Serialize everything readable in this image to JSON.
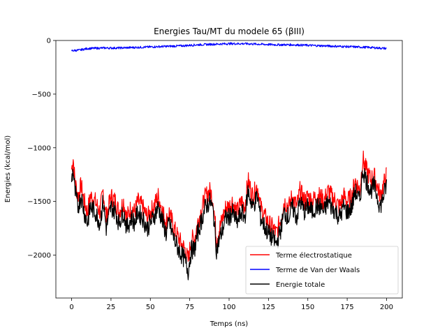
{
  "chart_data": {
    "type": "line",
    "title": "Energies Tau/MT du modele 65 (βIII)",
    "xlabel": "Temps (ns)",
    "ylabel": "Energies (kcal/mol)",
    "xlim": [
      -10,
      210
    ],
    "ylim": [
      -2400,
      0
    ],
    "xticks": [
      0,
      25,
      50,
      75,
      100,
      125,
      150,
      175,
      200
    ],
    "yticks": [
      0,
      -500,
      -1000,
      -1500,
      -2000
    ],
    "ytick_labels": [
      "0",
      "−500",
      "−1000",
      "−1500",
      "−2000"
    ],
    "legend_position": "lower-right",
    "series": [
      {
        "name": "Terme électrostatique",
        "color": "#ff0000",
        "x": [
          0,
          1,
          2,
          4,
          6,
          8,
          10,
          12,
          15,
          18,
          20,
          22,
          25,
          28,
          30,
          33,
          35,
          38,
          40,
          42,
          45,
          48,
          50,
          52,
          55,
          58,
          60,
          62,
          65,
          68,
          70,
          72,
          74,
          76,
          78,
          80,
          82,
          85,
          88,
          90,
          92,
          94,
          96,
          98,
          100,
          102,
          105,
          108,
          110,
          112,
          115,
          118,
          120,
          123,
          125,
          128,
          130,
          133,
          135,
          138,
          140,
          143,
          145,
          148,
          150,
          153,
          155,
          158,
          160,
          163,
          165,
          168,
          170,
          173,
          175,
          178,
          180,
          183,
          185,
          187,
          190,
          192,
          194,
          196,
          198,
          200
        ],
        "y": [
          -1200,
          -1100,
          -1300,
          -1450,
          -1350,
          -1500,
          -1600,
          -1450,
          -1500,
          -1600,
          -1400,
          -1650,
          -1450,
          -1500,
          -1600,
          -1500,
          -1650,
          -1550,
          -1600,
          -1500,
          -1550,
          -1650,
          -1600,
          -1550,
          -1450,
          -1600,
          -1700,
          -1600,
          -1750,
          -1850,
          -1900,
          -1950,
          -2050,
          -1850,
          -1850,
          -1700,
          -1600,
          -1450,
          -1400,
          -1500,
          -1850,
          -1750,
          -1650,
          -1550,
          -1550,
          -1500,
          -1600,
          -1500,
          -1550,
          -1300,
          -1450,
          -1350,
          -1550,
          -1650,
          -1700,
          -1750,
          -1800,
          -1650,
          -1500,
          -1550,
          -1450,
          -1550,
          -1400,
          -1500,
          -1450,
          -1500,
          -1450,
          -1450,
          -1500,
          -1400,
          -1450,
          -1500,
          -1550,
          -1450,
          -1500,
          -1450,
          -1300,
          -1400,
          -1100,
          -1200,
          -1300,
          -1250,
          -1350,
          -1450,
          -1350,
          -1250
        ]
      },
      {
        "name": "Terme de Van der Waals",
        "color": "#0000ff",
        "x": [
          0,
          5,
          10,
          20,
          30,
          40,
          50,
          60,
          70,
          80,
          90,
          100,
          110,
          120,
          130,
          140,
          150,
          160,
          170,
          180,
          190,
          200
        ],
        "y": [
          -95,
          -90,
          -75,
          -70,
          -70,
          -65,
          -60,
          -55,
          -50,
          -40,
          -35,
          -30,
          -30,
          -35,
          -40,
          -40,
          -45,
          -50,
          -55,
          -60,
          -65,
          -75
        ]
      },
      {
        "name": "Energie totale",
        "color": "#000000",
        "x": [
          0,
          1,
          2,
          4,
          6,
          8,
          10,
          12,
          15,
          18,
          20,
          22,
          25,
          28,
          30,
          33,
          35,
          38,
          40,
          42,
          45,
          48,
          50,
          52,
          55,
          58,
          60,
          62,
          65,
          68,
          70,
          72,
          74,
          76,
          78,
          80,
          82,
          85,
          88,
          90,
          92,
          94,
          96,
          98,
          100,
          102,
          105,
          108,
          110,
          112,
          115,
          118,
          120,
          123,
          125,
          128,
          130,
          133,
          135,
          138,
          140,
          143,
          145,
          148,
          150,
          153,
          155,
          158,
          160,
          163,
          165,
          168,
          170,
          173,
          175,
          178,
          180,
          183,
          185,
          187,
          190,
          192,
          194,
          196,
          198,
          200
        ],
        "y": [
          -1300,
          -1200,
          -1400,
          -1550,
          -1450,
          -1600,
          -1700,
          -1550,
          -1600,
          -1700,
          -1500,
          -1750,
          -1550,
          -1600,
          -1700,
          -1600,
          -1750,
          -1650,
          -1700,
          -1600,
          -1650,
          -1750,
          -1700,
          -1650,
          -1550,
          -1700,
          -1800,
          -1700,
          -1850,
          -1950,
          -2000,
          -2050,
          -2150,
          -1950,
          -1950,
          -1800,
          -1700,
          -1550,
          -1500,
          -1600,
          -1950,
          -1850,
          -1750,
          -1650,
          -1650,
          -1600,
          -1700,
          -1600,
          -1650,
          -1400,
          -1550,
          -1450,
          -1650,
          -1750,
          -1800,
          -1850,
          -1900,
          -1750,
          -1600,
          -1650,
          -1550,
          -1650,
          -1500,
          -1600,
          -1550,
          -1600,
          -1550,
          -1550,
          -1600,
          -1500,
          -1550,
          -1600,
          -1650,
          -1550,
          -1600,
          -1550,
          -1400,
          -1500,
          -1200,
          -1300,
          -1400,
          -1350,
          -1450,
          -1550,
          -1450,
          -1350
        ]
      }
    ]
  }
}
